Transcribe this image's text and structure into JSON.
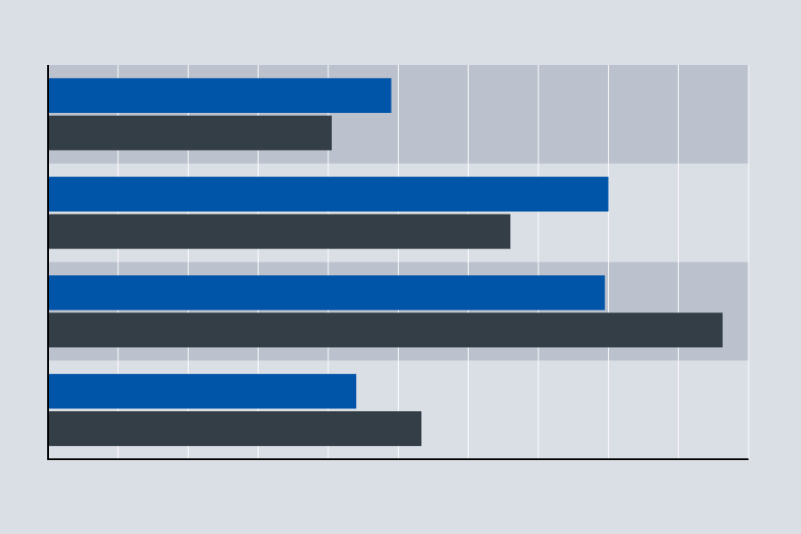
{
  "chart_data": {
    "type": "bar",
    "orientation": "horizontal",
    "title": "",
    "xlabel": "",
    "ylabel": "",
    "xlim": [
      0,
      10
    ],
    "grid": true,
    "legend": "none",
    "categories": [
      "",
      "",
      "",
      ""
    ],
    "series": [
      {
        "values": [
          4.9,
          8.0,
          7.95,
          4.4
        ]
      },
      {
        "values": [
          4.05,
          6.6,
          9.63,
          5.33
        ]
      }
    ]
  },
  "colors": {
    "background": "#dadee5",
    "band_dark": "#bbc1cd",
    "band_light": "#dadee5",
    "gridline": "#ffffff",
    "axis": "#000000",
    "series": [
      "#0055a8",
      "#333e47"
    ]
  }
}
